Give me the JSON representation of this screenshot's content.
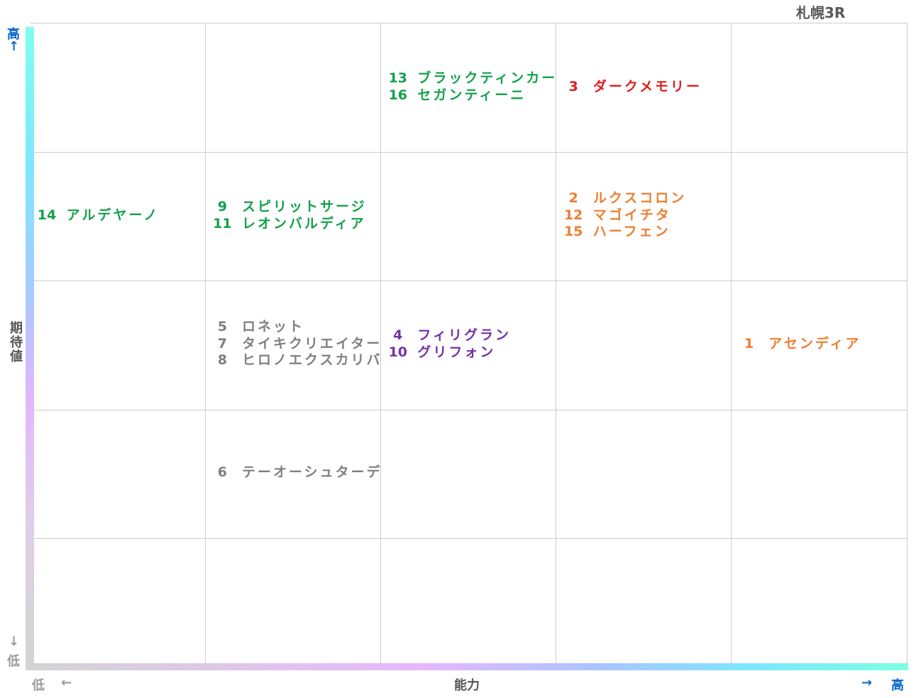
{
  "title": "札幌3R",
  "axes": {
    "y_label": "期待値",
    "x_label": "能力",
    "y_high": "高",
    "y_high_arrow": "↑",
    "y_low_arrow": "↓",
    "y_low": "低",
    "x_low": "低",
    "x_low_arrow": "←",
    "x_high_arrow": "→",
    "x_high": "高"
  },
  "colors": {
    "green": "#12a14b",
    "red": "#e01b1b",
    "orange": "#ef7d2f",
    "purple": "#7432a8",
    "gray": "#7f7f7f"
  },
  "chart_data": {
    "type": "table",
    "columns": 5,
    "rows": 5,
    "x_axis": "能力",
    "y_axis": "期待値",
    "entries": [
      {
        "col": 2,
        "row": 0,
        "color": "green",
        "horses": [
          {
            "num": "13",
            "name": "ブラックティンカー"
          },
          {
            "num": "16",
            "name": "セガンティーニ"
          }
        ]
      },
      {
        "col": 3,
        "row": 0,
        "color": "red",
        "horses": [
          {
            "num": "3",
            "name": "ダークメモリー"
          }
        ]
      },
      {
        "col": 0,
        "row": 1,
        "color": "green",
        "horses": [
          {
            "num": "14",
            "name": "アルデヤーノ"
          }
        ]
      },
      {
        "col": 1,
        "row": 1,
        "color": "green",
        "horses": [
          {
            "num": "9",
            "name": "スピリットサージ"
          },
          {
            "num": "11",
            "name": "レオンバルディア"
          }
        ]
      },
      {
        "col": 3,
        "row": 1,
        "color": "orange",
        "horses": [
          {
            "num": "2",
            "name": "ルクスコロン"
          },
          {
            "num": "12",
            "name": "マゴイチタ"
          },
          {
            "num": "15",
            "name": "ハーフェン"
          }
        ]
      },
      {
        "col": 1,
        "row": 2,
        "color": "gray",
        "horses": [
          {
            "num": "5",
            "name": "ロネット"
          },
          {
            "num": "7",
            "name": "タイキクリエイター"
          },
          {
            "num": "8",
            "name": "ヒロノエクスカリバ"
          }
        ]
      },
      {
        "col": 2,
        "row": 2,
        "color": "purple",
        "horses": [
          {
            "num": "4",
            "name": "フィリグラン"
          },
          {
            "num": "10",
            "name": "グリフォン"
          }
        ]
      },
      {
        "col": 4,
        "row": 2,
        "color": "orange",
        "horses": [
          {
            "num": "1",
            "name": "アセンディア"
          }
        ]
      },
      {
        "col": 1,
        "row": 3,
        "color": "gray",
        "horses": [
          {
            "num": "6",
            "name": "テーオーシュターデ"
          }
        ]
      }
    ]
  }
}
